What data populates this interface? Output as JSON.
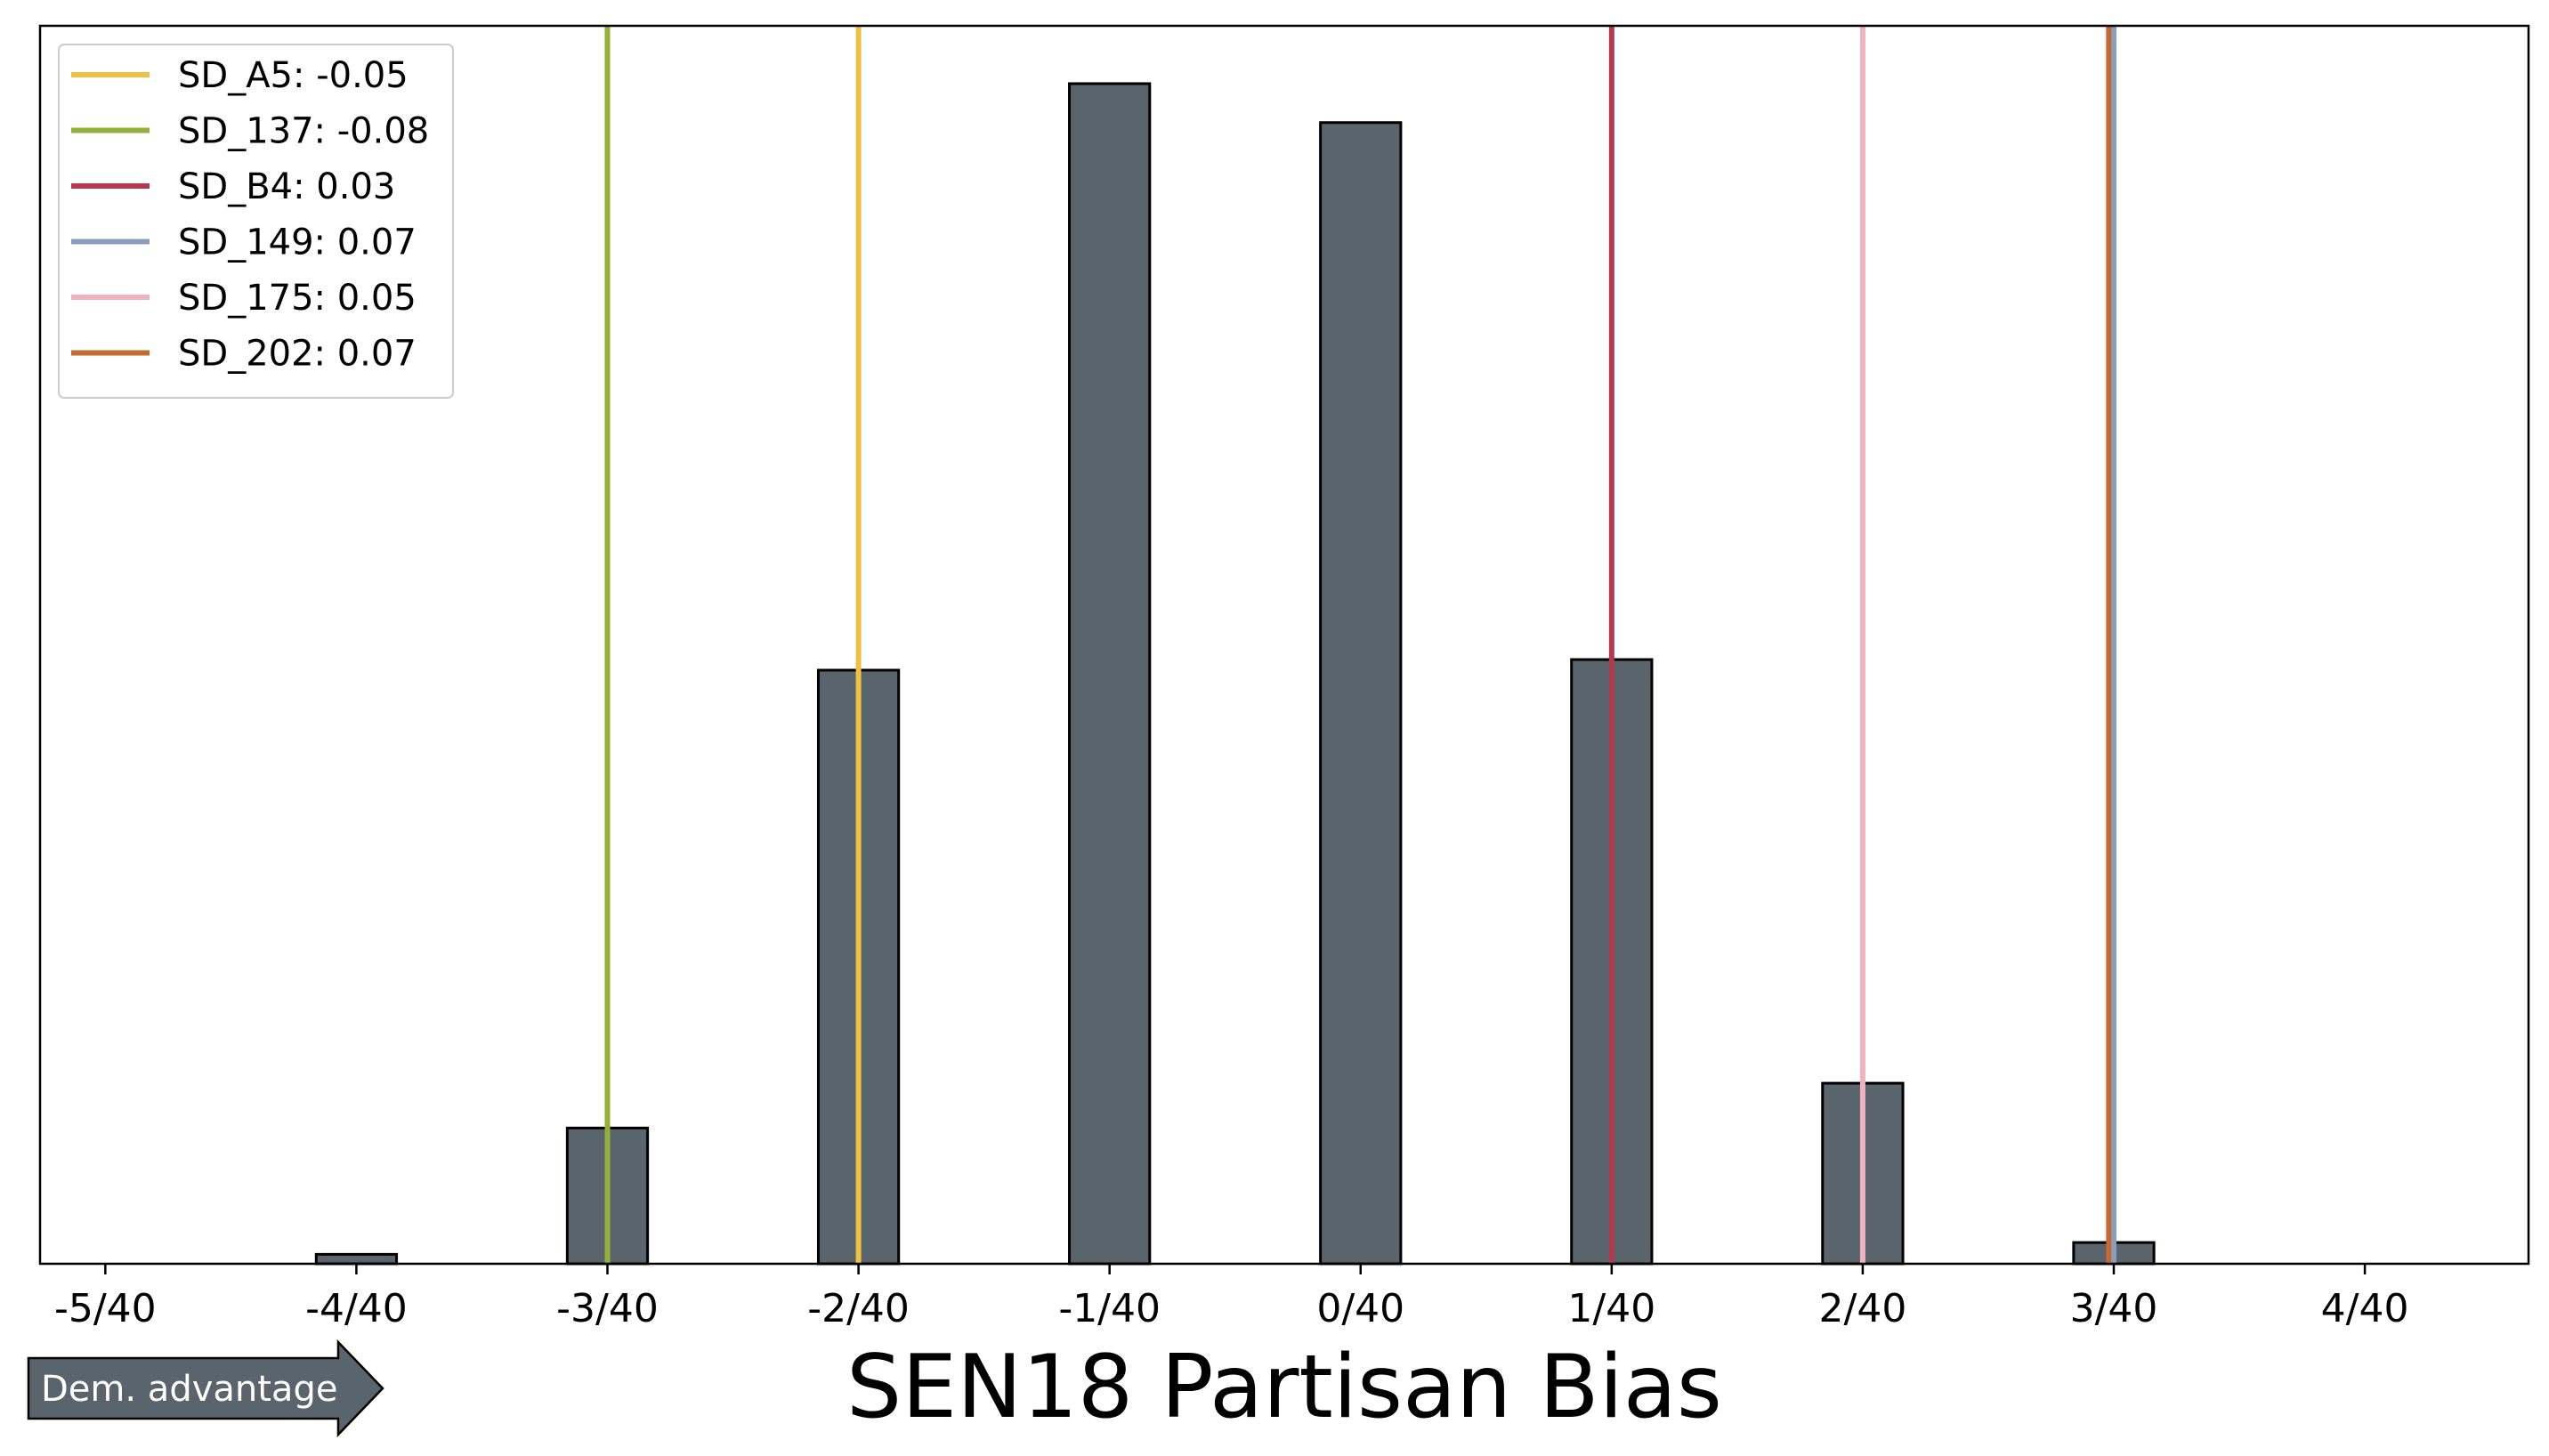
{
  "chart_data": {
    "type": "bar",
    "xlabel": "SEN18 Partisan Bias",
    "ylabel": "",
    "xlim": [
      -0.1315,
      0.1163
    ],
    "x_ticks": [
      {
        "value": -0.125,
        "label": "-5/40"
      },
      {
        "value": -0.1,
        "label": "-4/40"
      },
      {
        "value": -0.075,
        "label": "-3/40"
      },
      {
        "value": -0.05,
        "label": "-2/40"
      },
      {
        "value": -0.025,
        "label": "-1/40"
      },
      {
        "value": 0.0,
        "label": "0/40"
      },
      {
        "value": 0.025,
        "label": "1/40"
      },
      {
        "value": 0.05,
        "label": "2/40"
      },
      {
        "value": 0.075,
        "label": "3/40"
      },
      {
        "value": 0.1,
        "label": "4/40"
      }
    ],
    "bar_width": 0.008,
    "bars": [
      {
        "x": -0.125,
        "value": 0
      },
      {
        "x": -0.1125,
        "value": 0
      },
      {
        "x": -0.1,
        "value": 0.8
      },
      {
        "x": -0.0875,
        "value": 0
      },
      {
        "x": -0.075,
        "value": 11.5
      },
      {
        "x": -0.0625,
        "value": 0
      },
      {
        "x": -0.05,
        "value": 50.3
      },
      {
        "x": -0.0375,
        "value": 0
      },
      {
        "x": -0.025,
        "value": 100.0
      },
      {
        "x": -0.0125,
        "value": 0
      },
      {
        "x": 0.0,
        "value": 96.7
      },
      {
        "x": 0.0125,
        "value": 0
      },
      {
        "x": 0.025,
        "value": 51.2
      },
      {
        "x": 0.0375,
        "value": 0
      },
      {
        "x": 0.05,
        "value": 15.3
      },
      {
        "x": 0.0625,
        "value": 0
      },
      {
        "x": 0.075,
        "value": 1.8
      },
      {
        "x": 0.0875,
        "value": 0
      },
      {
        "x": 0.1,
        "value": 0
      }
    ],
    "ylim": [
      0,
      104.9
    ],
    "y_ticks_visible": false,
    "grid": false,
    "bar_color": "#5a646c",
    "bar_edge_color": "#000000",
    "vlines": [
      {
        "label": "SD_A5: -0.05",
        "x": -0.05,
        "color": "#f0c040"
      },
      {
        "label": "SD_137: -0.08",
        "x": -0.075,
        "color": "#92b03a"
      },
      {
        "label": "SD_B4: 0.03",
        "x": 0.025,
        "color": "#b33a4e"
      },
      {
        "label": "SD_149: 0.07",
        "x": 0.075,
        "color": "#8b9dbd"
      },
      {
        "label": "SD_175: 0.05",
        "x": 0.05,
        "color": "#f0b3bd"
      },
      {
        "label": "SD_202: 0.07",
        "x": 0.0745,
        "color": "#c26a30"
      }
    ],
    "legend_placement": "top-left",
    "annotation": {
      "text": "Dem. advantage",
      "direction": "right"
    }
  }
}
